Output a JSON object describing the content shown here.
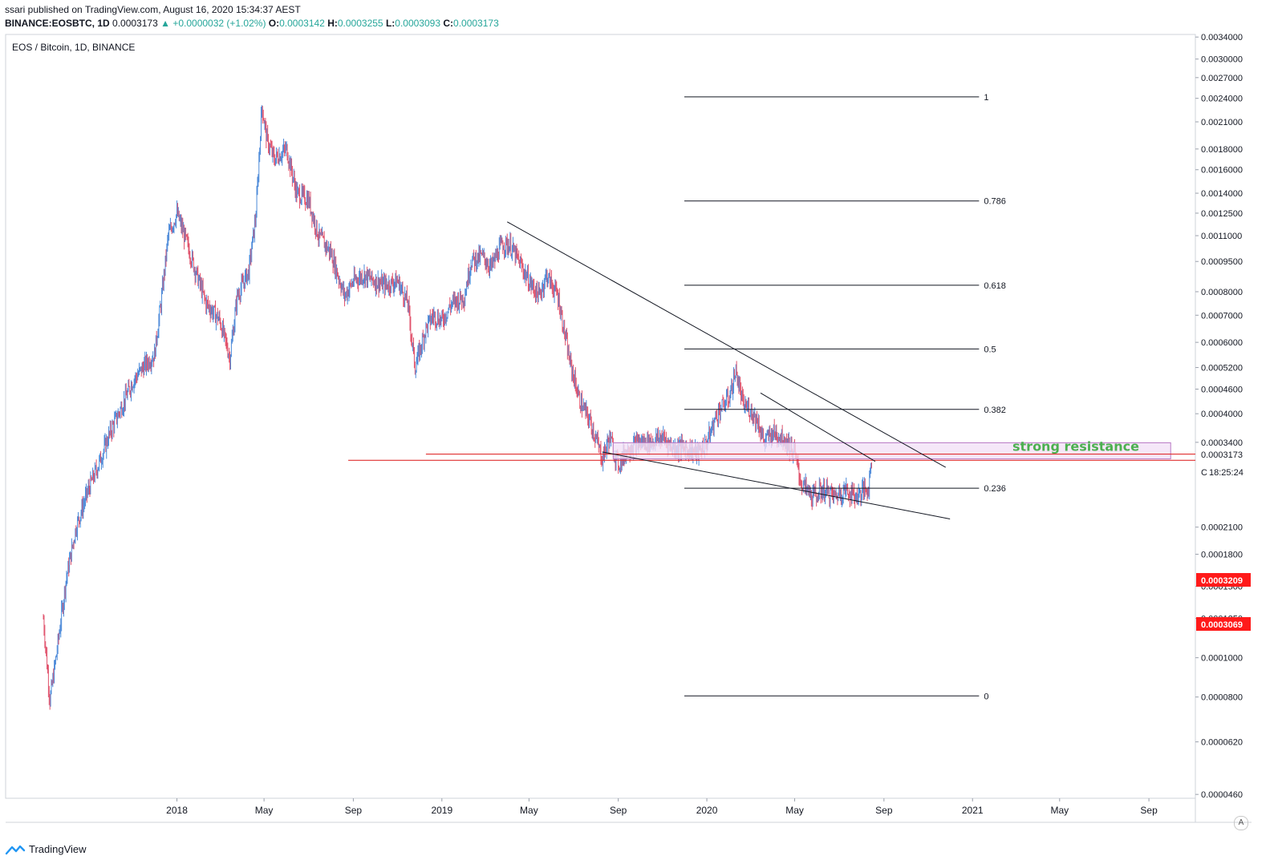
{
  "header": {
    "published": "ssari published on TradingView.com, August 16, 2020 15:34:37 AEST",
    "symbol": "BINANCE:EOSBTC, 1D",
    "last": "0.0003173",
    "change_arrow": "▲",
    "change": "+0.0000032 (+1.02%)",
    "o_label": "O:",
    "o_value": "0.0003142",
    "h_label": "H:",
    "h_value": "0.0003255",
    "l_label": "L:",
    "l_value": "0.0003093",
    "c_label": "C:",
    "c_value": "0.0003173"
  },
  "footer": {
    "brand": "TradingView",
    "auto_label": "A"
  },
  "chart_data": {
    "type": "candlestick",
    "title": "EOS / Bitcoin, 1D, BINANCE",
    "y_scale": "log",
    "ylim": [
      4.5e-05,
      0.00345
    ],
    "y_ticks": [
      "0.0034000",
      "0.0030000",
      "0.0027000",
      "0.0024000",
      "0.0021000",
      "0.0018000",
      "0.0016000",
      "0.0014000",
      "0.0012500",
      "0.0011000",
      "0.0009500",
      "0.0008000",
      "0.0007000",
      "0.0006000",
      "0.0005200",
      "0.0004600",
      "0.0004000",
      "0.0003400",
      "0.0002100",
      "0.0001800",
      "0.0001500",
      "0.0001250",
      "0.0001000",
      "0.0000800",
      "0.0000620",
      "0.0000460"
    ],
    "y_tick_values": [
      0.0034,
      0.003,
      0.0027,
      0.0024,
      0.0021,
      0.0018,
      0.0016,
      0.0014,
      0.00125,
      0.0011,
      0.00095,
      0.0008,
      0.0007,
      0.0006,
      0.00052,
      0.00046,
      0.0004,
      0.00034,
      0.00021,
      0.00018,
      0.00015,
      0.000125,
      0.0001,
      8e-05,
      6.2e-05,
      4.6e-05
    ],
    "x_ticks": [
      "2018",
      "May",
      "Sep",
      "2019",
      "May",
      "Sep",
      "2020",
      "May",
      "Sep",
      "2021",
      "May",
      "Sep"
    ],
    "x_tick_dates": [
      "2018-01-01",
      "2018-05-01",
      "2018-09-01",
      "2019-01-01",
      "2019-05-01",
      "2019-09-01",
      "2020-01-01",
      "2020-05-01",
      "2020-09-01",
      "2021-01-01",
      "2021-05-01",
      "2021-09-01"
    ],
    "x_range": [
      "2017-05-10",
      "2021-11-04"
    ],
    "price_path": [
      [
        "2017-07-01",
        0.000125
      ],
      [
        "2017-07-10",
        7.85e-05
      ],
      [
        "2017-07-20",
        0.000105
      ],
      [
        "2017-08-01",
        0.000155
      ],
      [
        "2017-08-15",
        0.00021
      ],
      [
        "2017-09-01",
        0.00026
      ],
      [
        "2017-09-15",
        0.0003
      ],
      [
        "2017-10-01",
        0.00036
      ],
      [
        "2017-11-01",
        0.00048
      ],
      [
        "2017-11-15",
        0.00052
      ],
      [
        "2017-12-01",
        0.00056
      ],
      [
        "2017-12-10",
        0.00075
      ],
      [
        "2017-12-20",
        0.0011
      ],
      [
        "2018-01-01",
        0.00125
      ],
      [
        "2018-01-15",
        0.00105
      ],
      [
        "2018-01-25",
        0.00092
      ],
      [
        "2018-02-10",
        0.00075
      ],
      [
        "2018-03-01",
        0.00068
      ],
      [
        "2018-03-15",
        0.00055
      ],
      [
        "2018-03-25",
        0.00078
      ],
      [
        "2018-04-10",
        0.0009
      ],
      [
        "2018-04-20",
        0.00125
      ],
      [
        "2018-04-28",
        0.0023
      ],
      [
        "2018-05-05",
        0.0019
      ],
      [
        "2018-05-15",
        0.0017
      ],
      [
        "2018-06-01",
        0.0018
      ],
      [
        "2018-06-15",
        0.0014
      ],
      [
        "2018-07-01",
        0.00135
      ],
      [
        "2018-07-15",
        0.0011
      ],
      [
        "2018-08-01",
        0.001
      ],
      [
        "2018-08-20",
        0.00078
      ],
      [
        "2018-09-01",
        0.00085
      ],
      [
        "2018-09-15",
        0.00088
      ],
      [
        "2018-10-01",
        0.00085
      ],
      [
        "2018-10-15",
        0.00083
      ],
      [
        "2018-11-01",
        0.00085
      ],
      [
        "2018-11-15",
        0.00075
      ],
      [
        "2018-11-25",
        0.00052
      ],
      [
        "2018-12-10",
        0.00065
      ],
      [
        "2018-12-20",
        0.0007
      ],
      [
        "2019-01-01",
        0.00068
      ],
      [
        "2019-01-15",
        0.00075
      ],
      [
        "2019-02-01",
        0.00078
      ],
      [
        "2019-02-10",
        0.00095
      ],
      [
        "2019-02-25",
        0.00098
      ],
      [
        "2019-03-10",
        0.00092
      ],
      [
        "2019-03-25",
        0.00105
      ],
      [
        "2019-04-05",
        0.00104
      ],
      [
        "2019-04-20",
        0.00093
      ],
      [
        "2019-05-01",
        0.00085
      ],
      [
        "2019-05-15",
        0.00078
      ],
      [
        "2019-05-25",
        0.00088
      ],
      [
        "2019-06-10",
        0.00078
      ],
      [
        "2019-06-25",
        0.00055
      ],
      [
        "2019-07-10",
        0.00043
      ],
      [
        "2019-07-25",
        0.00038
      ],
      [
        "2019-08-10",
        0.00031
      ],
      [
        "2019-08-20",
        0.00035
      ],
      [
        "2019-09-01",
        0.0003
      ],
      [
        "2019-09-15",
        0.00033
      ],
      [
        "2019-10-01",
        0.00034
      ],
      [
        "2019-10-15",
        0.00034
      ],
      [
        "2019-11-01",
        0.00035
      ],
      [
        "2019-11-15",
        0.00033
      ],
      [
        "2019-12-01",
        0.00033
      ],
      [
        "2019-12-20",
        0.00032
      ],
      [
        "2020-01-01",
        0.00034
      ],
      [
        "2020-01-15",
        0.0004
      ],
      [
        "2020-02-01",
        0.00044
      ],
      [
        "2020-02-10",
        0.00051
      ],
      [
        "2020-02-20",
        0.00042
      ],
      [
        "2020-03-01",
        0.00041
      ],
      [
        "2020-03-12",
        0.00038
      ],
      [
        "2020-03-20",
        0.00034
      ],
      [
        "2020-04-01",
        0.00036
      ],
      [
        "2020-04-15",
        0.00035
      ],
      [
        "2020-05-01",
        0.00032
      ],
      [
        "2020-05-10",
        0.00027
      ],
      [
        "2020-05-25",
        0.00025
      ],
      [
        "2020-06-10",
        0.00026
      ],
      [
        "2020-06-25",
        0.00025
      ],
      [
        "2020-07-10",
        0.00026
      ],
      [
        "2020-07-25",
        0.00025
      ],
      [
        "2020-08-05",
        0.00026
      ],
      [
        "2020-08-10",
        0.00026
      ],
      [
        "2020-08-16",
        0.0003173
      ]
    ],
    "fib_levels": [
      {
        "label": "1",
        "price": 0.00242
      },
      {
        "label": "0.786",
        "price": 0.00134
      },
      {
        "label": "0.618",
        "price": 0.00083
      },
      {
        "label": "0.5",
        "price": 0.000578
      },
      {
        "label": "0.382",
        "price": 0.00041
      },
      {
        "label": "0.236",
        "price": 0.000262
      },
      {
        "label": "0",
        "price": 8.05e-05
      }
    ],
    "fib_span": [
      "2019-12-01",
      "2021-01-10"
    ],
    "annotations": {
      "resistance_text": "strong resistance",
      "resistance_zone": {
        "x": [
          "2019-08-25",
          "2021-10-01"
        ],
        "y": [
          0.000318,
          0.00033
        ]
      },
      "red_lines": [
        {
          "x": [
            "2018-12-10",
            "2021-11-04"
          ],
          "price": 0.000318
        },
        {
          "x": [
            "2018-08-25",
            "2021-11-04"
          ],
          "price": 0.000307
        }
      ],
      "trendlines": [
        {
          "from": [
            "2019-04-01",
            0.00119
          ],
          "to": [
            "2020-11-25",
            0.000295
          ]
        },
        {
          "from": [
            "2019-08-10",
            0.000322
          ],
          "to": [
            "2020-12-01",
            0.00022
          ]
        },
        {
          "from": [
            "2020-03-15",
            0.00045
          ],
          "to": [
            "2020-08-20",
            0.000305
          ]
        }
      ]
    },
    "price_labels": {
      "last": "0.0003173",
      "countdown": "18:25:24",
      "countdown_prefix": "C",
      "high_marker": "0.0003209",
      "low_marker": "0.0003069"
    },
    "colors": {
      "up": "#4a88d8",
      "down": "#e0506a",
      "grid": "#e9ecf2",
      "text": "#131722",
      "resistance": "#e03030",
      "zone_fill": "#f3e1f6",
      "zone_stroke": "#b97ac5",
      "label_green": "#4caf50"
    }
  }
}
